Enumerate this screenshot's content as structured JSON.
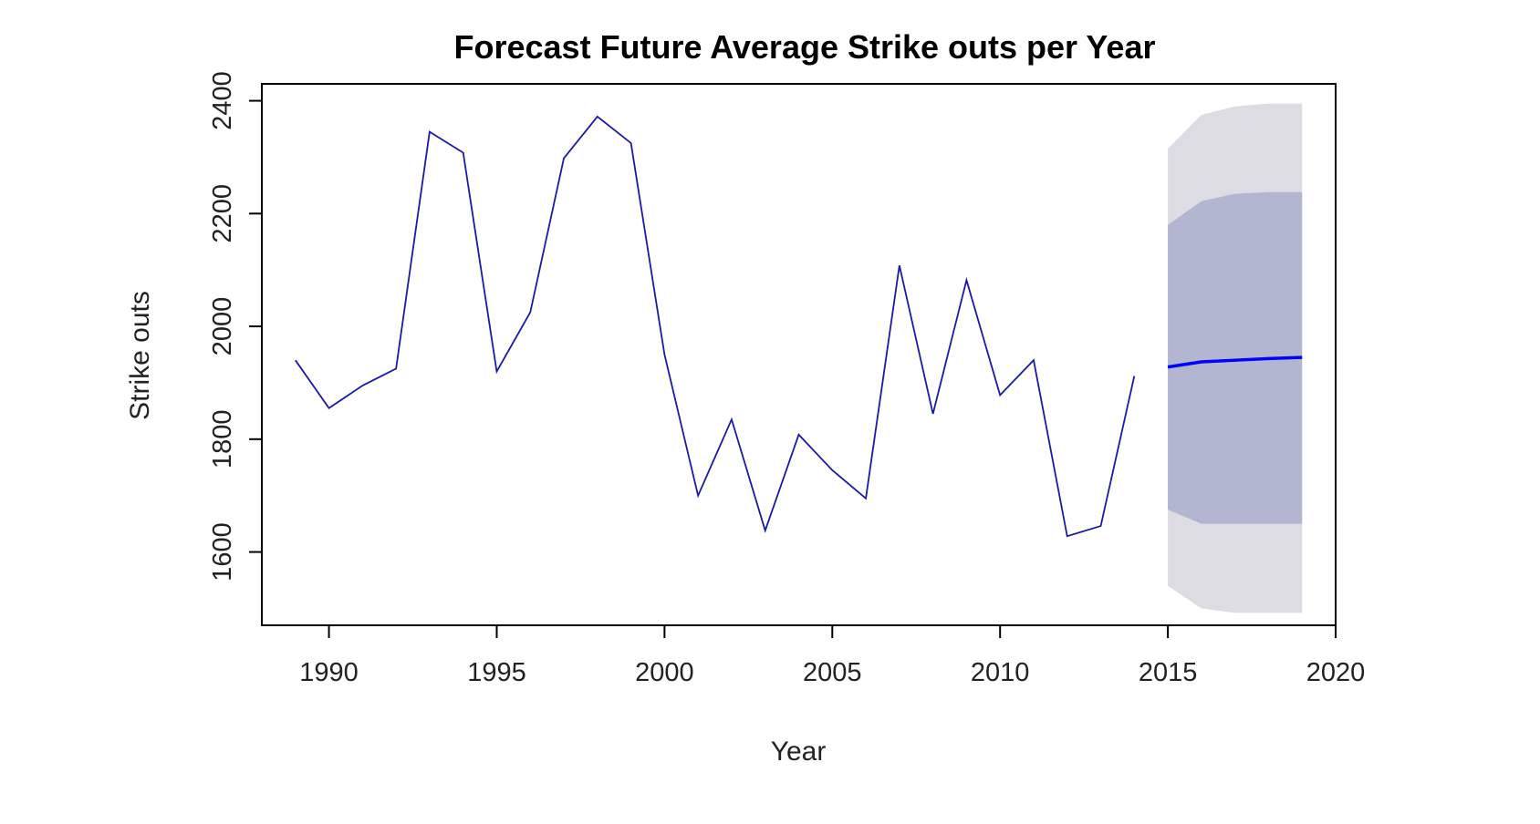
{
  "chart_data": {
    "type": "line",
    "title": "Forecast Future Average Strike outs per Year",
    "xlabel": "Year",
    "ylabel": "Strike outs",
    "xlim": [
      1988,
      2020
    ],
    "ylim": [
      1470,
      2430
    ],
    "x_ticks": [
      1990,
      1995,
      2000,
      2005,
      2010,
      2015,
      2020
    ],
    "y_ticks": [
      1600,
      1800,
      2000,
      2200,
      2400
    ],
    "grid": false,
    "legend": "none",
    "colors": {
      "observed": "#1a1aa8",
      "forecast": "#0000ff",
      "band95": "#dcdce2",
      "band80": "#b3b6d1"
    },
    "series": [
      {
        "x": [
          1989,
          1990,
          1991,
          1992,
          1993,
          1994,
          1995,
          1996,
          1997,
          1998,
          1999,
          2000,
          2001,
          2002,
          2003,
          2004,
          2005,
          2006,
          2007,
          2008,
          2009,
          2010,
          2011,
          2012,
          2013,
          2014
        ],
        "values": [
          1940,
          1855,
          1895,
          1925,
          2345,
          2308,
          1920,
          2025,
          2298,
          2372,
          2325,
          1950,
          1700,
          1835,
          1638,
          1808,
          1745,
          1695,
          2108,
          1845,
          2082,
          1878,
          1940,
          1628,
          1646,
          1912
        ]
      },
      {
        "x": [
          2015,
          2016,
          2017,
          2018,
          2019
        ],
        "values": [
          1928,
          1937,
          1940,
          1943,
          1945
        ],
        "lo80": [
          1675,
          1650,
          1650,
          1650,
          1650
        ],
        "hi80": [
          2180,
          2222,
          2235,
          2238,
          2238
        ],
        "lo95": [
          1540,
          1500,
          1492,
          1492,
          1492
        ],
        "hi95": [
          2315,
          2375,
          2390,
          2395,
          2395
        ]
      }
    ]
  }
}
